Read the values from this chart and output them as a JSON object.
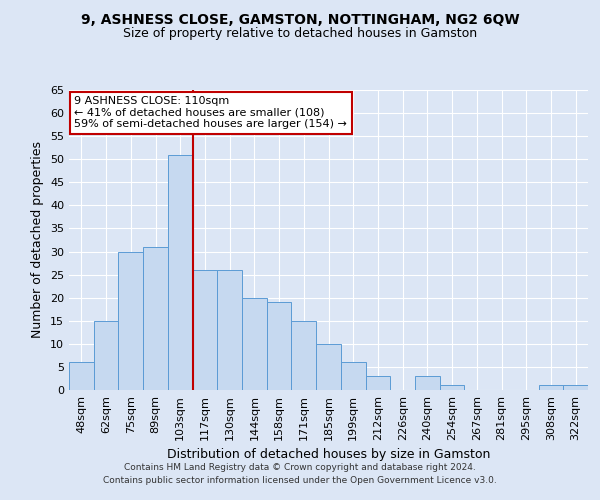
{
  "title1": "9, ASHNESS CLOSE, GAMSTON, NOTTINGHAM, NG2 6QW",
  "title2": "Size of property relative to detached houses in Gamston",
  "xlabel": "Distribution of detached houses by size in Gamston",
  "ylabel": "Number of detached properties",
  "bin_labels": [
    "48sqm",
    "62sqm",
    "75sqm",
    "89sqm",
    "103sqm",
    "117sqm",
    "130sqm",
    "144sqm",
    "158sqm",
    "171sqm",
    "185sqm",
    "199sqm",
    "212sqm",
    "226sqm",
    "240sqm",
    "254sqm",
    "267sqm",
    "281sqm",
    "295sqm",
    "308sqm",
    "322sqm"
  ],
  "bar_heights": [
    6,
    15,
    30,
    31,
    51,
    26,
    26,
    20,
    19,
    15,
    10,
    6,
    3,
    0,
    3,
    1,
    0,
    0,
    0,
    1,
    1
  ],
  "bar_color": "#c6d9f0",
  "bar_edge_color": "#5b9bd5",
  "vline_x": 4.5,
  "vline_color": "#c00000",
  "annotation_text": "9 ASHNESS CLOSE: 110sqm\n← 41% of detached houses are smaller (108)\n59% of semi-detached houses are larger (154) →",
  "annotation_box_color": "#ffffff",
  "annotation_box_edge": "#c00000",
  "ylim": [
    0,
    65
  ],
  "yticks": [
    0,
    5,
    10,
    15,
    20,
    25,
    30,
    35,
    40,
    45,
    50,
    55,
    60,
    65
  ],
  "footer_line1": "Contains HM Land Registry data © Crown copyright and database right 2024.",
  "footer_line2": "Contains public sector information licensed under the Open Government Licence v3.0.",
  "bg_color": "#dce6f5",
  "plot_bg_color": "#dce6f5",
  "title1_fontsize": 10,
  "title2_fontsize": 9,
  "axis_fontsize": 9,
  "tick_fontsize": 8,
  "annotation_fontsize": 8,
  "footer_fontsize": 6.5
}
